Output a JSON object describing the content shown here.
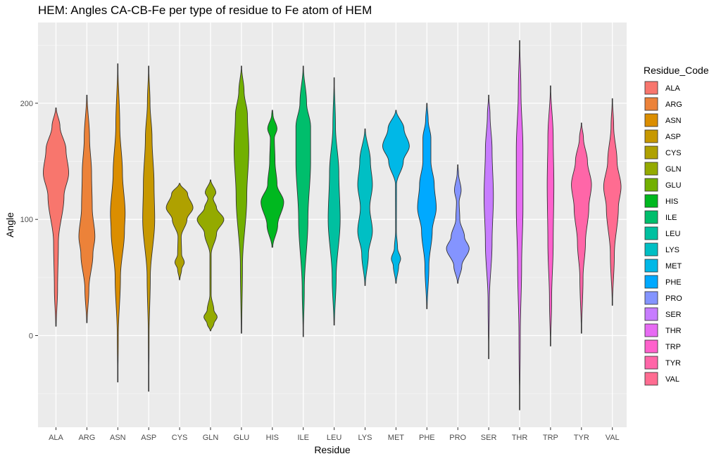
{
  "chart_data": {
    "type": "violin",
    "title": "HEM: Angles CA-CB-Fe per type of residue to Fe atom of HEM",
    "xlabel": "Residue",
    "ylabel": "Angle",
    "yticks": [
      0,
      100,
      200
    ],
    "ylim": [
      -80,
      270
    ],
    "legend": {
      "title": "Residue_Code",
      "position": "right"
    },
    "grid": true,
    "series": [
      {
        "name": "ALA",
        "color": "#F8766D",
        "min": 8,
        "max": 196,
        "profile": [
          [
            8,
            0.02
          ],
          [
            40,
            0.12
          ],
          [
            80,
            0.18
          ],
          [
            120,
            0.6
          ],
          [
            140,
            0.95
          ],
          [
            160,
            0.75
          ],
          [
            180,
            0.3
          ],
          [
            196,
            0.02
          ]
        ]
      },
      {
        "name": "ARG",
        "color": "#EC8239",
        "min": 11,
        "max": 207,
        "profile": [
          [
            11,
            0.02
          ],
          [
            40,
            0.15
          ],
          [
            70,
            0.45
          ],
          [
            85,
            0.6
          ],
          [
            110,
            0.4
          ],
          [
            140,
            0.35
          ],
          [
            170,
            0.2
          ],
          [
            207,
            0.02
          ]
        ]
      },
      {
        "name": "ASN",
        "color": "#DB8E00",
        "min": -40,
        "max": 234,
        "profile": [
          [
            -40,
            0.01
          ],
          [
            0,
            0.04
          ],
          [
            50,
            0.2
          ],
          [
            90,
            0.5
          ],
          [
            105,
            0.55
          ],
          [
            140,
            0.35
          ],
          [
            180,
            0.15
          ],
          [
            234,
            0.01
          ]
        ]
      },
      {
        "name": "ASP",
        "color": "#C79800",
        "min": -48,
        "max": 232,
        "profile": [
          [
            -48,
            0.01
          ],
          [
            0,
            0.03
          ],
          [
            50,
            0.12
          ],
          [
            100,
            0.45
          ],
          [
            130,
            0.4
          ],
          [
            170,
            0.25
          ],
          [
            200,
            0.1
          ],
          [
            232,
            0.01
          ]
        ]
      },
      {
        "name": "CYS",
        "color": "#AFA100",
        "min": 48,
        "max": 131,
        "profile": [
          [
            48,
            0.02
          ],
          [
            57,
            0.15
          ],
          [
            63,
            0.35
          ],
          [
            70,
            0.15
          ],
          [
            85,
            0.12
          ],
          [
            100,
            0.55
          ],
          [
            110,
            1.0
          ],
          [
            122,
            0.6
          ],
          [
            131,
            0.03
          ]
        ]
      },
      {
        "name": "GLN",
        "color": "#94AA00",
        "min": 4,
        "max": 134,
        "profile": [
          [
            4,
            0.02
          ],
          [
            10,
            0.25
          ],
          [
            16,
            0.5
          ],
          [
            22,
            0.25
          ],
          [
            35,
            0.05
          ],
          [
            70,
            0.05
          ],
          [
            88,
            0.45
          ],
          [
            100,
            1.0
          ],
          [
            110,
            0.45
          ],
          [
            118,
            0.2
          ],
          [
            123,
            0.4
          ],
          [
            134,
            0.02
          ]
        ]
      },
      {
        "name": "GLU",
        "color": "#72B000",
        "min": 2,
        "max": 232,
        "profile": [
          [
            2,
            0.02
          ],
          [
            60,
            0.08
          ],
          [
            120,
            0.4
          ],
          [
            160,
            0.55
          ],
          [
            190,
            0.45
          ],
          [
            210,
            0.2
          ],
          [
            232,
            0.01
          ]
        ]
      },
      {
        "name": "HIS",
        "color": "#00B81F",
        "min": 76,
        "max": 194,
        "profile": [
          [
            76,
            0.03
          ],
          [
            95,
            0.4
          ],
          [
            115,
            0.85
          ],
          [
            130,
            0.35
          ],
          [
            150,
            0.2
          ],
          [
            170,
            0.15
          ],
          [
            178,
            0.35
          ],
          [
            190,
            0.05
          ],
          [
            194,
            0.02
          ]
        ]
      },
      {
        "name": "ILE",
        "color": "#00BE6C",
        "min": -1,
        "max": 232,
        "profile": [
          [
            -1,
            0.01
          ],
          [
            40,
            0.08
          ],
          [
            100,
            0.35
          ],
          [
            150,
            0.55
          ],
          [
            180,
            0.55
          ],
          [
            200,
            0.25
          ],
          [
            232,
            0.01
          ]
        ]
      },
      {
        "name": "LEU",
        "color": "#00C0A0",
        "min": 9,
        "max": 222,
        "profile": [
          [
            9,
            0.02
          ],
          [
            50,
            0.15
          ],
          [
            100,
            0.45
          ],
          [
            140,
            0.35
          ],
          [
            180,
            0.1
          ],
          [
            222,
            0.01
          ]
        ]
      },
      {
        "name": "LYS",
        "color": "#00BFC4",
        "min": 43,
        "max": 178,
        "profile": [
          [
            43,
            0.02
          ],
          [
            70,
            0.25
          ],
          [
            90,
            0.55
          ],
          [
            110,
            0.35
          ],
          [
            130,
            0.55
          ],
          [
            150,
            0.4
          ],
          [
            178,
            0.02
          ]
        ]
      },
      {
        "name": "MET",
        "color": "#00B8E7",
        "min": 45,
        "max": 194,
        "profile": [
          [
            45,
            0.02
          ],
          [
            60,
            0.2
          ],
          [
            66,
            0.35
          ],
          [
            75,
            0.12
          ],
          [
            90,
            0.03
          ],
          [
            130,
            0.04
          ],
          [
            150,
            0.55
          ],
          [
            163,
            1.0
          ],
          [
            178,
            0.6
          ],
          [
            194,
            0.02
          ]
        ]
      },
      {
        "name": "PHE",
        "color": "#00A9FF",
        "min": 23,
        "max": 200,
        "profile": [
          [
            23,
            0.02
          ],
          [
            60,
            0.15
          ],
          [
            90,
            0.4
          ],
          [
            110,
            0.7
          ],
          [
            130,
            0.55
          ],
          [
            150,
            0.3
          ],
          [
            170,
            0.3
          ],
          [
            185,
            0.1
          ],
          [
            200,
            0.02
          ]
        ]
      },
      {
        "name": "PRO",
        "color": "#8494FF",
        "min": 45,
        "max": 147,
        "profile": [
          [
            45,
            0.02
          ],
          [
            60,
            0.3
          ],
          [
            75,
            0.85
          ],
          [
            85,
            0.5
          ],
          [
            100,
            0.15
          ],
          [
            115,
            0.1
          ],
          [
            125,
            0.25
          ],
          [
            140,
            0.05
          ],
          [
            147,
            0.01
          ]
        ]
      },
      {
        "name": "SER",
        "color": "#C77CFF",
        "min": -20,
        "max": 207,
        "profile": [
          [
            -20,
            0.01
          ],
          [
            30,
            0.05
          ],
          [
            80,
            0.25
          ],
          [
            120,
            0.35
          ],
          [
            160,
            0.25
          ],
          [
            190,
            0.1
          ],
          [
            207,
            0.01
          ]
        ]
      },
      {
        "name": "THR",
        "color": "#E76BF3",
        "min": -64,
        "max": 254,
        "profile": [
          [
            -64,
            0.01
          ],
          [
            0,
            0.05
          ],
          [
            60,
            0.15
          ],
          [
            110,
            0.25
          ],
          [
            160,
            0.25
          ],
          [
            210,
            0.1
          ],
          [
            254,
            0.01
          ]
        ]
      },
      {
        "name": "TRP",
        "color": "#FF61CC",
        "min": -9,
        "max": 215,
        "profile": [
          [
            -9,
            0.01
          ],
          [
            30,
            0.08
          ],
          [
            80,
            0.2
          ],
          [
            130,
            0.25
          ],
          [
            170,
            0.2
          ],
          [
            215,
            0.01
          ]
        ]
      },
      {
        "name": "TYR",
        "color": "#FF66A8",
        "min": 2,
        "max": 183,
        "profile": [
          [
            2,
            0.01
          ],
          [
            50,
            0.12
          ],
          [
            80,
            0.3
          ],
          [
            110,
            0.55
          ],
          [
            130,
            0.75
          ],
          [
            150,
            0.45
          ],
          [
            170,
            0.15
          ],
          [
            183,
            0.01
          ]
        ]
      },
      {
        "name": "VAL",
        "color": "#FF6C91",
        "min": 26,
        "max": 204,
        "profile": [
          [
            26,
            0.01
          ],
          [
            70,
            0.15
          ],
          [
            110,
            0.45
          ],
          [
            128,
            0.65
          ],
          [
            150,
            0.35
          ],
          [
            180,
            0.1
          ],
          [
            204,
            0.01
          ]
        ]
      }
    ]
  }
}
